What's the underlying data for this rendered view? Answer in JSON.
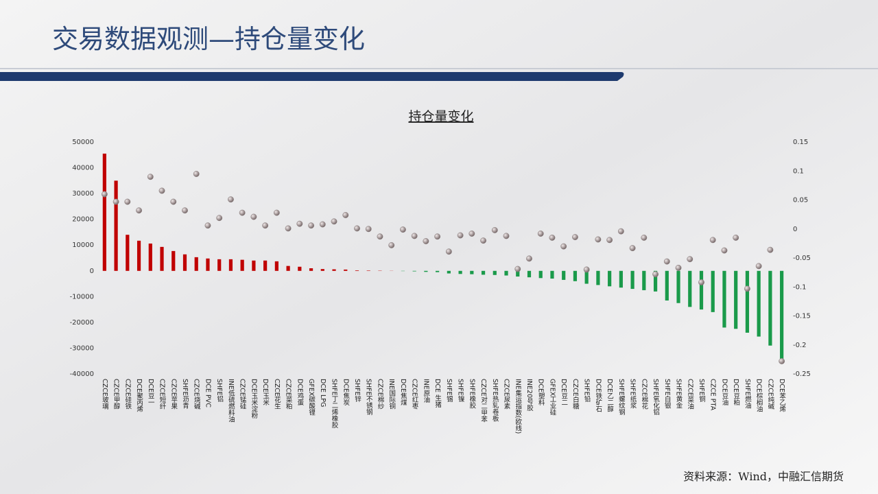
{
  "page_title": "交易数据观测—持仓量变化",
  "source": "资料来源：Wind，中融汇信期货",
  "chart_data": {
    "type": "bar",
    "title": "持仓量变化",
    "categories": [
      "CZCE玻璃",
      "CZCE甲醇",
      "CZCE硅铁",
      "DCE聚丙烯",
      "DCE豆一",
      "CZCE短纤",
      "CZCE苹果",
      "SHFE沥青",
      "CZCE烧碱",
      "DCE PVC",
      "SHFE铝",
      "INE低硫燃料油",
      "CZCE锰硅",
      "DCE玉米淀粉",
      "DCE玉米",
      "CZCE花生",
      "CZCE菜粕",
      "DCE鸡蛋",
      "GFEX碳酸锂",
      "DCE LPG",
      "SHFE丁二烯橡胶",
      "DCE焦炭",
      "SHFE锌",
      "SHFE不锈钢",
      "CZCE棉纱",
      "INE国际铜",
      "DCE焦煤",
      "CZCE红枣",
      "INE原油",
      "DCE 生猪",
      "SHFE锡",
      "SHFE镍",
      "SHFE橡胶",
      "CZCE对二甲苯",
      "SHFE热轧卷板",
      "CZCE尿素",
      "INE集运指数(欧线)",
      "INE20号胶",
      "DCE塑料",
      "GFEX工业硅",
      "DCE豆二",
      "CZCE白糖",
      "SHFE铅",
      "DCE铁矿石",
      "DCE乙二醇",
      "SHFE螺纹钢",
      "SHFE纸浆",
      "CZCE棉花",
      "SHFE氧化铝",
      "SHFE白银",
      "SHFE黄金",
      "CZCE菜油",
      "SHFE铜",
      "CZCE PTA",
      "DCE豆油",
      "DCE豆粕",
      "SHFE燃油",
      "DCE棕榈油",
      "CZCE纯碱",
      "DCE苯乙烯"
    ],
    "series": [
      {
        "type": "bar",
        "color": "#c00000",
        "negative_color": "#1a9a4a",
        "values": [
          45500,
          35000,
          14000,
          11700,
          10600,
          9300,
          7700,
          6400,
          5300,
          4800,
          4500,
          4500,
          4300,
          4000,
          4000,
          3700,
          1900,
          1600,
          1000,
          700,
          600,
          500,
          200,
          150,
          100,
          50,
          -100,
          -200,
          -400,
          -500,
          -1000,
          -1200,
          -1300,
          -1500,
          -1600,
          -1800,
          -2200,
          -2500,
          -2800,
          -3000,
          -3500,
          -4000,
          -5000,
          -5500,
          -6000,
          -6500,
          -7000,
          -7500,
          -8000,
          -11500,
          -12500,
          -14000,
          -15000,
          -16000,
          -22000,
          -22500,
          -24000,
          -25500,
          -29000,
          -34500
        ]
      },
      {
        "type": "scatter",
        "axis": "y2",
        "color": "#8a8080",
        "values": [
          0.06,
          0.047,
          0.047,
          0.032,
          0.09,
          0.066,
          0.047,
          0.032,
          0.095,
          0.006,
          0.019,
          0.051,
          0.028,
          0.021,
          0.006,
          0.028,
          0.001,
          0.009,
          0.006,
          0.008,
          0.013,
          0.024,
          0.001,
          0,
          -0.013,
          -0.028,
          -0.001,
          -0.012,
          -0.021,
          -0.013,
          -0.039,
          -0.011,
          -0.008,
          -0.02,
          -0.002,
          -0.012,
          -0.069,
          -0.051,
          -0.008,
          -0.015,
          -0.03,
          -0.014,
          -0.07,
          -0.018,
          -0.019,
          -0.004,
          -0.033,
          -0.015,
          -0.078,
          -0.056,
          -0.067,
          -0.052,
          -0.092,
          -0.019,
          -0.037,
          -0.015,
          -0.103,
          -0.064,
          -0.036,
          -0.228
        ]
      }
    ],
    "ylim": [
      -40000,
      50000
    ],
    "yticks": [
      50000,
      40000,
      30000,
      20000,
      10000,
      0,
      -10000,
      -20000,
      -30000,
      -40000
    ],
    "y2lim": [
      -0.25,
      0.15
    ],
    "y2ticks": [
      0.15,
      0.1,
      0.05,
      0,
      -0.05,
      -0.1,
      -0.15,
      -0.2,
      -0.25
    ]
  }
}
